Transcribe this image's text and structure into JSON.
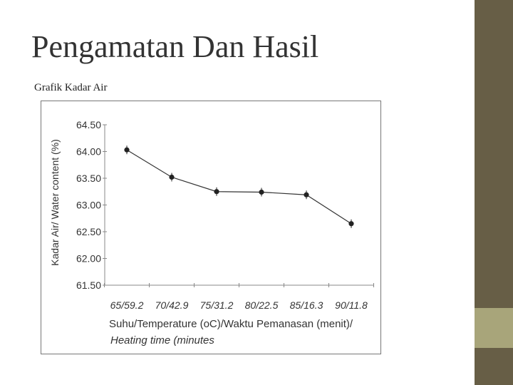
{
  "slide": {
    "title": "Pengamatan Dan Hasil",
    "subtitle": "Grafik Kadar Air"
  },
  "colors": {
    "sidebar_dark": "#675e46",
    "sidebar_accent": "#a8a57a",
    "line": "#333333"
  },
  "chart_data": {
    "type": "line",
    "categories": [
      "65/59.2",
      "70/42.9",
      "75/31.2",
      "80/22.5",
      "85/16.3",
      "90/11.8"
    ],
    "values": [
      64.03,
      63.52,
      63.25,
      63.24,
      63.19,
      62.65
    ],
    "title": "",
    "xlabel_line1": "Suhu/Temperature (oC)/Waktu Pemanasan (menit)/",
    "xlabel_line2": "Heating time (minutes",
    "ylabel": "Kadar Air/ Water content (%)",
    "ylim": [
      61.5,
      64.5
    ],
    "yticks": [
      "61.50",
      "62.00",
      "62.50",
      "63.00",
      "63.50",
      "64.00",
      "64.50"
    ],
    "grid": false,
    "legend": "none"
  }
}
